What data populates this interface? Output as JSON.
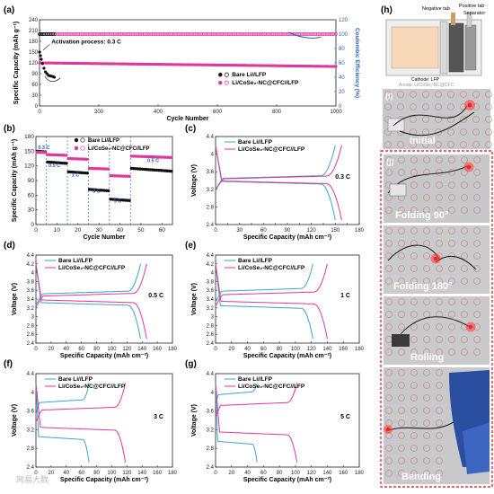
{
  "panels": {
    "a": {
      "label": "(a)"
    },
    "b": {
      "label": "(b)"
    },
    "c": {
      "label": "(c)"
    },
    "d": {
      "label": "(d)"
    },
    "e": {
      "label": "(e)"
    },
    "f": {
      "label": "(f)"
    },
    "g": {
      "label": "(g)"
    },
    "h": {
      "label": "(h)"
    },
    "i": {
      "label": "(i)"
    },
    "j": {
      "label": "(j)"
    }
  },
  "colors": {
    "bare": "#111111",
    "cose2": "#e0379a",
    "bare_line": "#3aa6c9",
    "cose2_line": "#e0379a",
    "ce": "#2a5db0",
    "dashed": "#3d6fd6",
    "photo_frame": "#e0323c"
  },
  "schematic": {
    "negative_tab": "Negative tab",
    "positive_tab": "Positive tab",
    "separator": "Separator",
    "cathode": "Cathode: LFP",
    "anode": "Anode: Li/CoSe₂-NC@CFC"
  },
  "photos": {
    "initial": "Initial",
    "folding90": "Folding 90°",
    "folding180": "Folding 180°",
    "rolling": "Rolling",
    "bending": "Bending"
  },
  "watermark": "网易大数",
  "chart_data": [
    {
      "id": "a",
      "type": "scatter",
      "xlabel": "Cycle Number",
      "ylabel": "Specific Capacity (mAh g⁻¹)",
      "y2label": "Coulombic Efficiency (%)",
      "xlim": [
        0,
        1000
      ],
      "ylim": [
        0,
        240
      ],
      "y2lim": [
        0,
        120
      ],
      "xticks": [
        0,
        200,
        400,
        600,
        800,
        1000
      ],
      "yticks": [
        0,
        30,
        60,
        90,
        120,
        150,
        180,
        210,
        240
      ],
      "y2ticks": [
        0,
        20,
        40,
        60,
        80,
        100,
        120
      ],
      "annotation": "Activation process: 0.3 C",
      "legend": [
        "Bare Li//LFP",
        "Li/CoSe₂-NC@CFC//LFP"
      ],
      "series": [
        {
          "name": "Bare Li//LFP",
          "x": [
            0,
            3,
            6,
            10,
            15,
            20,
            25,
            30,
            35,
            40,
            45,
            50
          ],
          "capacity": [
            150,
            140,
            130,
            118,
            105,
            95,
            90,
            85,
            84,
            83,
            82,
            80
          ],
          "ce": [
            100,
            100,
            100,
            100,
            100,
            100,
            100,
            100,
            100,
            100,
            100,
            100
          ]
        },
        {
          "name": "Li/CoSe₂-NC@CFC//LFP",
          "x_range": [
            0,
            1000
          ],
          "capacity_start": 120,
          "capacity_end": 110,
          "ce": 100
        }
      ]
    },
    {
      "id": "b",
      "type": "scatter",
      "xlabel": "Cycle Number",
      "ylabel": "Specific Capacity (mAh g⁻¹)",
      "xlim": [
        0,
        65
      ],
      "ylim": [
        0,
        180
      ],
      "xticks": [
        0,
        10,
        20,
        30,
        40,
        50,
        60
      ],
      "yticks": [
        0,
        30,
        60,
        90,
        120,
        150,
        180
      ],
      "rate_labels": [
        "0.3 C",
        "0.5 C",
        "1 C",
        "3 C",
        "5 C",
        "0.5 C"
      ],
      "boundaries": [
        5,
        15,
        25,
        35,
        45
      ],
      "legend": [
        "Bare Li//LFP",
        "Li/CoSe₂-NC@CFC//LFP"
      ],
      "series": [
        {
          "name": "Bare Li//LFP",
          "segments": [
            [
              0,
              5,
              150
            ],
            [
              5,
              15,
              128
            ],
            [
              15,
              25,
              108
            ],
            [
              25,
              35,
              72
            ],
            [
              35,
              45,
              52
            ],
            [
              45,
              65,
              115
            ]
          ]
        },
        {
          "name": "Li/CoSe₂-NC@CFC//LFP",
          "segments": [
            [
              0,
              5,
              148
            ],
            [
              5,
              15,
              143
            ],
            [
              15,
              25,
              135
            ],
            [
              25,
              35,
              115
            ],
            [
              35,
              45,
              100
            ],
            [
              45,
              65,
              140
            ]
          ]
        }
      ]
    },
    {
      "id": "c",
      "type": "line",
      "rate": "0.3 C",
      "xlabel": "Specific Capacity (mAh cm⁻²)",
      "ylabel": "Voltage (V)",
      "xlim": [
        0,
        180
      ],
      "ylim": [
        2.4,
        4.4
      ],
      "xticks": [
        0,
        15,
        30,
        45,
        60,
        75,
        90,
        105,
        120,
        135,
        150,
        165,
        180
      ],
      "yticks": [
        2.4,
        2.8,
        3.2,
        3.6,
        4.0,
        4.4
      ],
      "legend": [
        "Bare Li//LFP",
        "Li/CoSe₂-NC@CFC//LFP"
      ],
      "series": [
        {
          "name": "Bare Li//LFP",
          "charge_plateau": 3.45,
          "discharge_plateau": 3.38,
          "capacity": 150
        },
        {
          "name": "Li/CoSe₂-NC@CFC//LFP",
          "charge_plateau": 3.44,
          "discharge_plateau": 3.39,
          "capacity": 158
        }
      ]
    },
    {
      "id": "d",
      "type": "line",
      "rate": "0.5 C",
      "xlabel": "Specific Capacity (mAh cm⁻²)",
      "ylabel": "Voltage (V)",
      "xlim": [
        0,
        180
      ],
      "ylim": [
        2.4,
        4.4
      ],
      "xticks": [
        0,
        20,
        40,
        60,
        80,
        100,
        120,
        140,
        160,
        180
      ],
      "yticks": [
        2.4,
        2.6,
        2.8,
        3.0,
        3.2,
        3.4,
        3.6,
        3.8,
        4.0,
        4.2,
        4.4
      ],
      "legend": [
        "Bare Li//LFP",
        "Li/CoSe₂-NC@CFC//LFP"
      ],
      "series": [
        {
          "name": "Bare Li//LFP",
          "charge_plateau": 3.52,
          "discharge_plateau": 3.32,
          "capacity": 138
        },
        {
          "name": "Li/CoSe₂-NC@CFC//LFP",
          "charge_plateau": 3.47,
          "discharge_plateau": 3.38,
          "capacity": 146
        }
      ]
    },
    {
      "id": "e",
      "type": "line",
      "rate": "1 C",
      "xlabel": "Specific Capacity (mAh cm⁻²)",
      "ylabel": "Voltage (V)",
      "xlim": [
        0,
        180
      ],
      "ylim": [
        2.4,
        4.4
      ],
      "xticks": [
        0,
        20,
        40,
        60,
        80,
        100,
        120,
        140,
        160,
        180
      ],
      "yticks": [
        2.4,
        2.6,
        2.8,
        3.0,
        3.2,
        3.4,
        3.6,
        3.8,
        4.0,
        4.2,
        4.4
      ],
      "legend": [
        "Bare Li//LFP",
        "Li/CoSe₂-NC@CFC//LFP"
      ],
      "series": [
        {
          "name": "Bare Li//LFP",
          "charge_plateau": 3.58,
          "discharge_plateau": 3.25,
          "capacity": 122
        },
        {
          "name": "Li/CoSe₂-NC@CFC//LFP",
          "charge_plateau": 3.5,
          "discharge_plateau": 3.35,
          "capacity": 140
        }
      ]
    },
    {
      "id": "f",
      "type": "line",
      "rate": "3 C",
      "xlabel": "Specific Capacity (mAh cm⁻²)",
      "ylabel": "Voltage (V)",
      "xlim": [
        0,
        180
      ],
      "ylim": [
        2.4,
        4.4
      ],
      "xticks": [
        0,
        20,
        40,
        60,
        80,
        100,
        120,
        140,
        160,
        180
      ],
      "yticks": [
        2.4,
        2.8,
        3.2,
        3.6,
        4.0,
        4.4
      ],
      "legend": [
        "Bare Li//LFP",
        "Li/CoSe₂-NC@CFC//LFP"
      ],
      "series": [
        {
          "name": "Bare Li//LFP",
          "charge_plateau": 3.78,
          "discharge_plateau": 3.05,
          "capacity": 70
        },
        {
          "name": "Li/CoSe₂-NC@CFC//LFP",
          "charge_plateau": 3.62,
          "discharge_plateau": 3.25,
          "capacity": 118
        }
      ]
    },
    {
      "id": "g",
      "type": "line",
      "rate": "5 C",
      "xlabel": "Specific Capacity (mAh cm⁻²)",
      "ylabel": "Voltage (V)",
      "xlim": [
        0,
        180
      ],
      "ylim": [
        2.4,
        4.4
      ],
      "xticks": [
        0,
        20,
        40,
        60,
        80,
        100,
        120,
        140,
        160,
        180
      ],
      "yticks": [
        2.4,
        2.8,
        3.2,
        3.6,
        4.0,
        4.4
      ],
      "legend": [
        "Bare Li//LFP",
        "Li/CoSe₂-NC@CFC//LFP"
      ],
      "series": [
        {
          "name": "Bare Li//LFP",
          "charge_plateau": 3.95,
          "discharge_plateau": 2.95,
          "capacity": 52
        },
        {
          "name": "Li/CoSe₂-NC@CFC//LFP",
          "charge_plateau": 3.72,
          "discharge_plateau": 3.15,
          "capacity": 102
        }
      ]
    }
  ]
}
